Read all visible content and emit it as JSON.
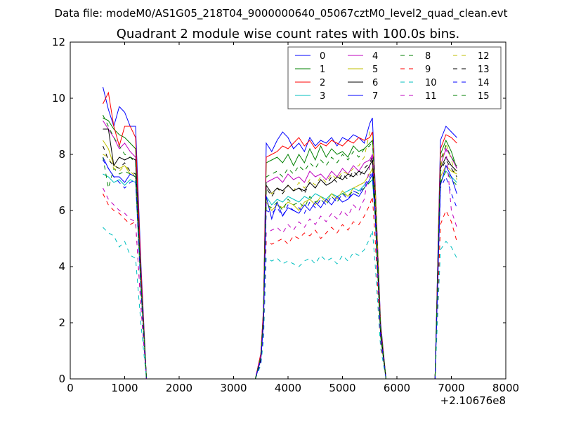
{
  "figure": {
    "suptitle": "Data file: modeM0/AS1G05_218T04_9000000640_05067cztM0_level2_quad_clean.evt"
  },
  "chart_data": {
    "type": "line",
    "title": "Quadrant 2 module wise count rates with 100.0s bins.",
    "xlabel": "",
    "ylabel": "",
    "xlim": [
      0,
      8000
    ],
    "ylim": [
      0,
      12
    ],
    "x_ticks": [
      0,
      1000,
      2000,
      3000,
      4000,
      5000,
      6000,
      7000,
      8000
    ],
    "y_ticks": [
      0,
      2,
      4,
      6,
      8,
      10,
      12
    ],
    "x_offset_label": "+2.10676e8",
    "grid": false,
    "legend": {
      "placement": "top-right",
      "columns": 4
    },
    "x": [
      600,
      700,
      800,
      900,
      1000,
      1100,
      1200,
      1300,
      1400,
      1500,
      1600,
      1700,
      1800,
      1900,
      2000,
      2100,
      2200,
      2300,
      2400,
      2500,
      2600,
      2700,
      2800,
      2900,
      3000,
      3100,
      3200,
      3300,
      3400,
      3500,
      3550,
      3600,
      3700,
      3800,
      3900,
      4000,
      4100,
      4200,
      4300,
      4400,
      4500,
      4600,
      4700,
      4800,
      4900,
      5000,
      5100,
      5200,
      5300,
      5400,
      5500,
      5550,
      5600,
      5700,
      5800,
      5900,
      6000,
      6100,
      6200,
      6300,
      6400,
      6500,
      6600,
      6700,
      6800,
      6900,
      7000,
      7100
    ],
    "segments": [
      {
        "start": 0,
        "end": 9
      },
      {
        "start": 28,
        "end": 54
      },
      {
        "start": 62,
        "end": 67
      }
    ],
    "series": [
      {
        "name": "0",
        "style": "solid",
        "color": "#0000ff",
        "values": [
          10.4,
          9.6,
          9.0,
          9.7,
          9.5,
          9.0,
          9.0,
          4.0,
          0,
          0,
          0,
          0,
          0,
          0,
          0,
          0,
          0,
          0,
          0,
          0,
          0,
          0,
          0,
          0,
          0,
          0,
          0,
          0,
          0,
          0.9,
          2.5,
          8.4,
          8.1,
          8.5,
          8.8,
          8.6,
          8.2,
          8.4,
          8.1,
          8.6,
          8.3,
          8.5,
          8.4,
          8.6,
          8.3,
          8.6,
          8.5,
          8.7,
          8.6,
          8.4,
          9.1,
          9.3,
          7.0,
          2.0,
          0,
          0,
          0,
          0,
          0,
          0,
          0,
          0,
          0,
          0,
          8.5,
          9.0,
          8.8,
          8.6
        ]
      },
      {
        "name": "1",
        "style": "solid",
        "color": "#008000",
        "values": [
          9.3,
          9.2,
          8.9,
          8.7,
          8.6,
          8.4,
          8.2,
          3.6,
          0,
          0,
          0,
          0,
          0,
          0,
          0,
          0,
          0,
          0,
          0,
          0,
          0,
          0,
          0,
          0,
          0,
          0,
          0,
          0,
          0,
          0.8,
          2.4,
          7.7,
          7.8,
          7.9,
          7.7,
          8.0,
          7.6,
          8.0,
          7.7,
          8.2,
          7.8,
          8.3,
          7.9,
          8.2,
          8.0,
          8.1,
          7.9,
          8.3,
          8.1,
          8.2,
          8.4,
          8.5,
          6.8,
          1.8,
          0,
          0,
          0,
          0,
          0,
          0,
          0,
          0,
          0,
          0,
          8.0,
          8.5,
          8.1,
          7.5
        ]
      },
      {
        "name": "2",
        "style": "solid",
        "color": "#ff0000",
        "values": [
          9.8,
          10.2,
          9.0,
          8.3,
          9.0,
          9.0,
          8.6,
          3.8,
          0,
          0,
          0,
          0,
          0,
          0,
          0,
          0,
          0,
          0,
          0,
          0,
          0,
          0,
          0,
          0,
          0,
          0,
          0,
          0,
          0,
          0.9,
          2.5,
          7.9,
          8.0,
          8.1,
          8.3,
          8.2,
          8.4,
          8.6,
          8.3,
          8.5,
          8.2,
          8.4,
          8.3,
          8.5,
          8.4,
          8.3,
          8.5,
          8.4,
          8.6,
          8.5,
          8.6,
          8.8,
          6.9,
          1.9,
          0,
          0,
          0,
          0,
          0,
          0,
          0,
          0,
          0,
          0,
          8.2,
          8.7,
          8.6,
          8.4
        ]
      },
      {
        "name": "3",
        "style": "solid",
        "color": "#00bfbf",
        "values": [
          7.3,
          7.2,
          7.0,
          7.1,
          6.9,
          7.1,
          7.0,
          3.1,
          0,
          0,
          0,
          0,
          0,
          0,
          0,
          0,
          0,
          0,
          0,
          0,
          0,
          0,
          0,
          0,
          0,
          0,
          0,
          0,
          0,
          0.7,
          2.0,
          6.5,
          6.2,
          6.4,
          6.3,
          6.5,
          6.4,
          6.3,
          6.5,
          6.4,
          6.6,
          6.5,
          6.4,
          6.6,
          6.5,
          6.6,
          6.7,
          6.8,
          6.7,
          6.9,
          7.0,
          7.1,
          5.8,
          1.6,
          0,
          0,
          0,
          0,
          0,
          0,
          0,
          0,
          0,
          0,
          7.0,
          7.4,
          7.2,
          7.0
        ]
      },
      {
        "name": "4",
        "style": "solid",
        "color": "#bf00bf",
        "values": [
          9.2,
          8.9,
          8.6,
          8.2,
          8.4,
          8.1,
          7.9,
          3.5,
          0,
          0,
          0,
          0,
          0,
          0,
          0,
          0,
          0,
          0,
          0,
          0,
          0,
          0,
          0,
          0,
          0,
          0,
          0,
          0,
          0,
          0.8,
          2.3,
          7.0,
          7.1,
          7.2,
          7.0,
          7.3,
          7.1,
          7.2,
          7.0,
          7.4,
          7.2,
          7.3,
          7.1,
          7.4,
          7.2,
          7.5,
          7.3,
          7.6,
          7.4,
          7.7,
          7.8,
          8.0,
          6.4,
          1.7,
          0,
          0,
          0,
          0,
          0,
          0,
          0,
          0,
          0,
          0,
          7.6,
          8.2,
          7.9,
          7.5
        ]
      },
      {
        "name": "5",
        "style": "solid",
        "color": "#bfbf00",
        "values": [
          8.5,
          8.2,
          7.6,
          7.5,
          7.6,
          7.3,
          7.2,
          3.2,
          0,
          0,
          0,
          0,
          0,
          0,
          0,
          0,
          0,
          0,
          0,
          0,
          0,
          0,
          0,
          0,
          0,
          0,
          0,
          0,
          0,
          0.7,
          2.1,
          6.3,
          6.0,
          6.2,
          6.1,
          6.3,
          6.2,
          6.0,
          6.3,
          6.4,
          6.2,
          6.5,
          6.3,
          6.6,
          6.4,
          6.7,
          6.5,
          6.8,
          6.9,
          7.0,
          7.3,
          7.5,
          6.0,
          1.6,
          0,
          0,
          0,
          0,
          0,
          0,
          0,
          0,
          0,
          0,
          7.2,
          7.6,
          7.4,
          7.3
        ]
      },
      {
        "name": "6",
        "style": "solid",
        "color": "#000000",
        "values": [
          8.9,
          8.9,
          7.6,
          7.9,
          7.8,
          7.9,
          7.8,
          3.4,
          0,
          0,
          0,
          0,
          0,
          0,
          0,
          0,
          0,
          0,
          0,
          0,
          0,
          0,
          0,
          0,
          0,
          0,
          0,
          0,
          0,
          0.7,
          2.2,
          6.9,
          6.6,
          6.8,
          6.7,
          6.9,
          6.7,
          6.8,
          6.7,
          7.0,
          6.8,
          7.1,
          6.9,
          7.0,
          7.2,
          7.1,
          7.3,
          7.2,
          7.4,
          7.3,
          7.6,
          7.8,
          6.1,
          1.7,
          0,
          0,
          0,
          0,
          0,
          0,
          0,
          0,
          0,
          0,
          7.5,
          7.9,
          7.6,
          7.4
        ]
      },
      {
        "name": "7",
        "style": "solid",
        "color": "#0000ff",
        "values": [
          7.9,
          7.5,
          7.2,
          7.2,
          7.0,
          7.3,
          7.2,
          3.2,
          0,
          0,
          0,
          0,
          0,
          0,
          0,
          0,
          0,
          0,
          0,
          0,
          0,
          0,
          0,
          0,
          0,
          0,
          0,
          0,
          0,
          0.7,
          2.0,
          6.5,
          5.7,
          6.3,
          5.8,
          6.1,
          6.0,
          5.9,
          6.2,
          6.0,
          6.3,
          6.1,
          6.4,
          6.2,
          6.5,
          6.3,
          6.4,
          6.6,
          6.5,
          6.8,
          7.1,
          7.3,
          5.9,
          1.6,
          0,
          0,
          0,
          0,
          0,
          0,
          0,
          0,
          0,
          0,
          6.9,
          7.6,
          7.2,
          6.6
        ]
      },
      {
        "name": "8",
        "style": "dashed",
        "color": "#008000",
        "values": [
          7.9,
          6.8,
          7.5,
          7.3,
          7.4,
          7.3,
          7.2,
          3.2,
          0,
          0,
          0,
          0,
          0,
          0,
          0,
          0,
          0,
          0,
          0,
          0,
          0,
          0,
          0,
          0,
          0,
          0,
          0,
          0,
          0,
          0.6,
          1.9,
          6.2,
          6.1,
          6.3,
          6.0,
          6.4,
          6.2,
          6.3,
          6.1,
          6.5,
          6.3,
          6.4,
          6.2,
          6.5,
          6.3,
          6.6,
          6.5,
          6.7,
          6.6,
          6.8,
          7.0,
          7.2,
          5.8,
          1.5,
          0,
          0,
          0,
          0,
          0,
          0,
          0,
          0,
          0,
          0,
          7.0,
          7.4,
          7.1,
          6.9
        ]
      },
      {
        "name": "9",
        "style": "dashed",
        "color": "#ff0000",
        "values": [
          6.6,
          6.2,
          6.0,
          5.9,
          5.7,
          5.5,
          5.6,
          2.5,
          0,
          0,
          0,
          0,
          0,
          0,
          0,
          0,
          0,
          0,
          0,
          0,
          0,
          0,
          0,
          0,
          0,
          0,
          0,
          0,
          0,
          0.6,
          1.6,
          4.9,
          4.8,
          4.9,
          5.0,
          4.8,
          5.1,
          5.0,
          5.2,
          5.1,
          5.3,
          5.0,
          5.2,
          5.4,
          5.2,
          5.5,
          5.3,
          5.6,
          5.5,
          5.8,
          6.2,
          6.5,
          5.0,
          1.3,
          0,
          0,
          0,
          0,
          0,
          0,
          0,
          0,
          0,
          0,
          5.5,
          6.0,
          5.6,
          4.9
        ]
      },
      {
        "name": "10",
        "style": "dashed",
        "color": "#00bfbf",
        "values": [
          5.4,
          5.2,
          5.1,
          4.7,
          4.9,
          4.4,
          4.3,
          1.9,
          0,
          0,
          0,
          0,
          0,
          0,
          0,
          0,
          0,
          0,
          0,
          0,
          0,
          0,
          0,
          0,
          0,
          0,
          0,
          0,
          0,
          0.5,
          1.4,
          4.3,
          4.2,
          4.3,
          4.1,
          4.2,
          4.1,
          4.0,
          4.2,
          4.3,
          4.1,
          4.4,
          4.2,
          4.3,
          4.1,
          4.4,
          4.2,
          4.5,
          4.4,
          4.6,
          5.0,
          5.3,
          4.1,
          1.1,
          0,
          0,
          0,
          0,
          0,
          0,
          0,
          0,
          0,
          0,
          4.6,
          4.9,
          4.7,
          4.3
        ]
      },
      {
        "name": "11",
        "style": "dashed",
        "color": "#bf00bf",
        "values": [
          6.8,
          6.4,
          6.2,
          6.0,
          5.9,
          5.7,
          5.6,
          2.5,
          0,
          0,
          0,
          0,
          0,
          0,
          0,
          0,
          0,
          0,
          0,
          0,
          0,
          0,
          0,
          0,
          0,
          0,
          0,
          0,
          0,
          0.6,
          1.7,
          5.2,
          5.3,
          5.4,
          5.2,
          5.5,
          5.3,
          5.6,
          5.4,
          5.7,
          5.5,
          5.8,
          5.6,
          5.9,
          5.7,
          6.0,
          5.8,
          6.2,
          6.0,
          6.4,
          7.6,
          8.0,
          6.3,
          1.7,
          0,
          0,
          0,
          0,
          0,
          0,
          0,
          0,
          0,
          0,
          7.8,
          8.2,
          6.0,
          5.4
        ]
      },
      {
        "name": "12",
        "style": "dashed",
        "color": "#bfbf00",
        "values": [
          8.0,
          7.9,
          7.5,
          7.4,
          7.6,
          7.4,
          7.2,
          3.2,
          0,
          0,
          0,
          0,
          0,
          0,
          0,
          0,
          0,
          0,
          0,
          0,
          0,
          0,
          0,
          0,
          0,
          0,
          0,
          0,
          0,
          0.7,
          2.1,
          6.7,
          6.6,
          6.8,
          6.6,
          6.9,
          6.7,
          7.0,
          6.8,
          7.1,
          6.9,
          7.2,
          7.0,
          7.3,
          7.1,
          7.4,
          7.3,
          7.5,
          7.6,
          7.9,
          8.8,
          8.7,
          6.8,
          1.8,
          0,
          0,
          0,
          0,
          0,
          0,
          0,
          0,
          0,
          0,
          7.5,
          8.4,
          7.8,
          7.1
        ]
      },
      {
        "name": "13",
        "style": "dashed",
        "color": "#000000",
        "values": [
          8.3,
          7.8,
          7.6,
          7.5,
          7.7,
          7.4,
          7.3,
          3.3,
          0,
          0,
          0,
          0,
          0,
          0,
          0,
          0,
          0,
          0,
          0,
          0,
          0,
          0,
          0,
          0,
          0,
          0,
          0,
          0,
          0,
          0.7,
          2.1,
          6.8,
          6.5,
          6.8,
          6.6,
          6.9,
          6.7,
          6.8,
          6.6,
          7.0,
          6.8,
          7.1,
          6.9,
          7.2,
          7.0,
          7.3,
          7.1,
          7.4,
          7.2,
          7.5,
          7.7,
          7.9,
          6.2,
          1.7,
          0,
          0,
          0,
          0,
          0,
          0,
          0,
          0,
          0,
          0,
          7.4,
          7.8,
          7.5,
          7.2
        ]
      },
      {
        "name": "14",
        "style": "dashed",
        "color": "#0000ff",
        "values": [
          7.8,
          7.5,
          7.2,
          7.0,
          6.8,
          7.0,
          7.1,
          3.1,
          0,
          0,
          0,
          0,
          0,
          0,
          0,
          0,
          0,
          0,
          0,
          0,
          0,
          0,
          0,
          0,
          0,
          0,
          0,
          0,
          0,
          0.6,
          1.9,
          6.0,
          5.9,
          6.1,
          5.8,
          6.2,
          6.0,
          6.1,
          5.9,
          6.3,
          6.1,
          6.4,
          6.2,
          6.5,
          6.3,
          6.6,
          6.4,
          6.7,
          6.6,
          6.9,
          7.2,
          7.4,
          5.8,
          1.5,
          0,
          0,
          0,
          0,
          0,
          0,
          0,
          0,
          0,
          0,
          6.8,
          7.2,
          6.6,
          6.1
        ]
      },
      {
        "name": "15",
        "style": "dashed",
        "color": "#008000",
        "values": [
          9.4,
          9.0,
          8.6,
          8.3,
          8.0,
          7.9,
          7.7,
          3.4,
          0,
          0,
          0,
          0,
          0,
          0,
          0,
          0,
          0,
          0,
          0,
          0,
          0,
          0,
          0,
          0,
          0,
          0,
          0,
          0,
          0,
          0.8,
          2.3,
          7.2,
          7.3,
          7.4,
          7.2,
          7.5,
          7.3,
          7.6,
          7.4,
          7.7,
          7.5,
          7.8,
          7.6,
          7.9,
          7.7,
          8.0,
          7.8,
          8.1,
          7.9,
          8.2,
          8.3,
          8.5,
          6.7,
          1.8,
          0,
          0,
          0,
          0,
          0,
          0,
          0,
          0,
          0,
          0,
          7.8,
          8.3,
          7.9,
          7.6
        ]
      }
    ]
  }
}
